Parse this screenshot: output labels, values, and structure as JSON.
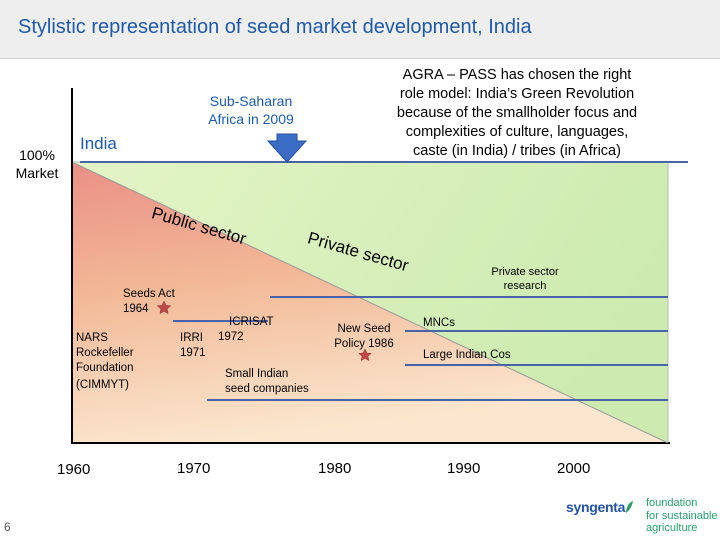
{
  "slide": {
    "title": "Stylistic representation of seed market development, India",
    "page_number": "6"
  },
  "callout": {
    "agra_lines": [
      "AGRA – PASS has chosen the right",
      "role model: India’s Green Revolution",
      "because of the smallholder focus and",
      "complexities of culture, languages,",
      "caste (in India) / tribes (in Africa)"
    ],
    "ssa_lines": [
      "Sub-Saharan",
      "Africa in 2009"
    ]
  },
  "diagram": {
    "india_label": "India",
    "market_lines": [
      "100%",
      "Market"
    ],
    "public_sector": "Public sector",
    "private_sector": "Private sector",
    "years": [
      "1960",
      "1970",
      "1980",
      "1990",
      "2000"
    ],
    "events": {
      "seeds_act": [
        "Seeds Act",
        "1964"
      ],
      "nars": [
        "NARS",
        "Rockefeller",
        "Foundation",
        "(CIMMYT)"
      ],
      "irri": [
        "IRRI",
        "1971"
      ],
      "icrisat": [
        "ICRISAT",
        "1972"
      ],
      "new_seed_policy": [
        "New Seed",
        "Policy 1986"
      ],
      "small_cos": [
        "Small Indian",
        "seed companies"
      ],
      "private_research": [
        "Private sector",
        "research"
      ],
      "mncs": "MNCs",
      "large_cos": "Large Indian Cos"
    }
  },
  "logo": {
    "brand": "syngenta",
    "foundation_lines": [
      "foundation",
      "for sustainable",
      "agriculture"
    ]
  },
  "colors": {
    "title": "#1f5aa8",
    "line": "#4a62a8",
    "private_fill": "#d5f0b4",
    "public_fill": "#f0bb94",
    "arrow": "#3b6cc6",
    "star": "#c04848",
    "logo_green": "#2c9c6a",
    "logo_blue": "#2453a6"
  }
}
